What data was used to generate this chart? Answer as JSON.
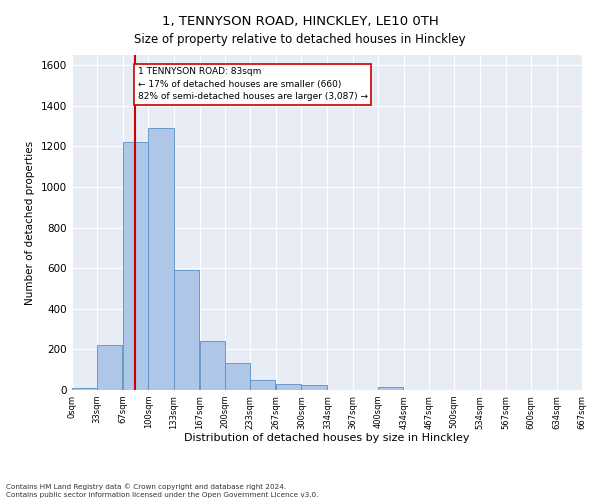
{
  "title": "1, TENNYSON ROAD, HINCKLEY, LE10 0TH",
  "subtitle": "Size of property relative to detached houses in Hinckley",
  "xlabel": "Distribution of detached houses by size in Hinckley",
  "ylabel": "Number of detached properties",
  "bar_color": "#aec6e8",
  "bar_edge_color": "#5a8fc2",
  "background_color": "#e8edf5",
  "grid_color": "#ffffff",
  "bin_edges": [
    0,
    33,
    67,
    100,
    133,
    167,
    200,
    233,
    267,
    300,
    334,
    367,
    400,
    434,
    467,
    500,
    534,
    567,
    600,
    634,
    667
  ],
  "bin_labels": [
    "0sqm",
    "33sqm",
    "67sqm",
    "100sqm",
    "133sqm",
    "167sqm",
    "200sqm",
    "233sqm",
    "267sqm",
    "300sqm",
    "334sqm",
    "367sqm",
    "400sqm",
    "434sqm",
    "467sqm",
    "500sqm",
    "534sqm",
    "567sqm",
    "600sqm",
    "634sqm",
    "667sqm"
  ],
  "bar_heights": [
    10,
    220,
    1220,
    1290,
    590,
    240,
    135,
    50,
    30,
    25,
    0,
    0,
    15,
    0,
    0,
    0,
    0,
    0,
    0,
    0
  ],
  "ylim": [
    0,
    1650
  ],
  "yticks": [
    0,
    200,
    400,
    600,
    800,
    1000,
    1200,
    1400,
    1600
  ],
  "property_value": 83,
  "annotation_title": "1 TENNYSON ROAD: 83sqm",
  "annotation_line1": "← 17% of detached houses are smaller (660)",
  "annotation_line2": "82% of semi-detached houses are larger (3,087) →",
  "vline_color": "#cc0000",
  "annotation_box_color": "#ffffff",
  "annotation_box_edge": "#cc0000",
  "footer_line1": "Contains HM Land Registry data © Crown copyright and database right 2024.",
  "footer_line2": "Contains public sector information licensed under the Open Government Licence v3.0."
}
